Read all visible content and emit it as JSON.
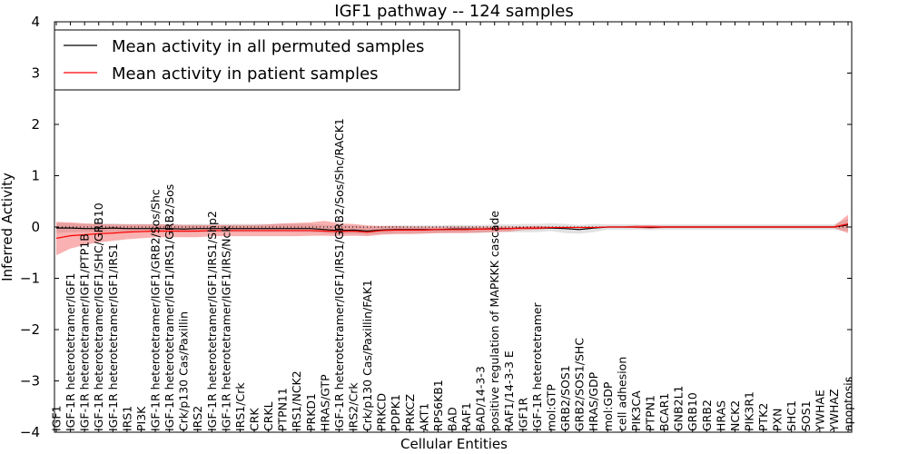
{
  "chart_data": {
    "type": "line",
    "title": "IGF1 pathway -- 124 samples",
    "xlabel": "Cellular Entities",
    "ylabel": "Inferred Activity",
    "ylim": [
      -4,
      4
    ],
    "yticks": [
      4,
      3,
      2,
      1,
      0,
      -1,
      -2,
      -3,
      -4
    ],
    "ytick_labels": [
      "4",
      "3",
      "2",
      "1",
      "0",
      "−1",
      "−2",
      "−3",
      "−4"
    ],
    "reference_line": 0,
    "legend_position": "top-left",
    "categories": [
      "IGF1",
      "IGF-1R heterotetramer/IGF1",
      "IGF-1R heterotetramer/IGF1/PTP1B",
      "IGF-1R heterotetramer/IGF1/SHC/GRB10",
      "IGF-1R heterotetramer/IGF1/IRS1",
      "IRS1",
      "PI3K",
      "IGF-1R heterotetramer/IGF1/GRB2/Sos/Shc",
      "IGF-1R heterotetramer/IGF1/IRS1/GRB2/Sos",
      "Crk/p130 Cas/Paxillin",
      "IRS2",
      "IGF-1R heterotetramer/IGF1/IRS1/Shp2",
      "IGF-1R heterotetramer/IGF1/IRS/Nck",
      "IRS1/Crk",
      "CRK",
      "CRKL",
      "PTPN11",
      "IRS1/NCK2",
      "PRKD1",
      "HRAS/GTP",
      "IGF-1R heterotetramer/IGF1/IRS1/GRB2/Sos/Shc/RACK1",
      "IRS2/Crk",
      "Crk/p130 Cas/Paxillin/FAK1",
      "PRKCD",
      "PDPK1",
      "PRKCZ",
      "AKT1",
      "RPS6KB1",
      "BAD",
      "RAF1",
      "BAD/14-3-3",
      "positive regulation of MAPKKK cascade",
      "RAF1/14-3-3 E",
      "IGF1R",
      "IGF-1R heterotetramer",
      "mol:GTP",
      "GRB2/SOS1",
      "GRB2/SOS1/SHC",
      "HRAS/GDP",
      "mol:GDP",
      "cell adhesion",
      "PIK3CA",
      "PTPN1",
      "BCAR1",
      "GNB2L1",
      "GRB10",
      "GRB2",
      "HRAS",
      "NCK2",
      "PIK3R1",
      "PTK2",
      "PXN",
      "SHC1",
      "SOS1",
      "YWHAE",
      "YWHAZ",
      "apoptosis"
    ],
    "series": [
      {
        "name": "Mean activity in all permuted samples",
        "color": "#000000",
        "values": [
          -0.02,
          -0.02,
          -0.03,
          -0.03,
          -0.02,
          -0.03,
          -0.03,
          -0.03,
          -0.03,
          -0.04,
          -0.03,
          -0.03,
          -0.03,
          -0.03,
          -0.03,
          -0.03,
          -0.03,
          -0.03,
          -0.03,
          -0.05,
          -0.07,
          -0.06,
          -0.08,
          -0.06,
          -0.05,
          -0.05,
          -0.05,
          -0.05,
          -0.04,
          -0.04,
          -0.04,
          -0.03,
          -0.03,
          -0.02,
          -0.02,
          -0.02,
          -0.03,
          -0.05,
          -0.02,
          0.0,
          0.0,
          0.0,
          -0.01,
          0.0,
          0.0,
          0.0,
          0.0,
          0.0,
          0.0,
          0.0,
          0.0,
          0.0,
          0.0,
          0.0,
          0.0,
          0.0,
          0.04
        ],
        "band_lower": [
          -0.12,
          -0.1,
          -0.1,
          -0.1,
          -0.1,
          -0.1,
          -0.1,
          -0.1,
          -0.1,
          -0.11,
          -0.1,
          -0.1,
          -0.1,
          -0.1,
          -0.1,
          -0.1,
          -0.1,
          -0.1,
          -0.1,
          -0.12,
          -0.14,
          -0.13,
          -0.15,
          -0.13,
          -0.12,
          -0.12,
          -0.12,
          -0.12,
          -0.11,
          -0.11,
          -0.11,
          -0.1,
          -0.1,
          -0.1,
          -0.1,
          -0.08,
          -0.12,
          -0.13,
          -0.1,
          -0.05,
          -0.05,
          -0.05,
          -0.06,
          -0.05,
          -0.05,
          -0.05,
          -0.05,
          -0.05,
          -0.05,
          -0.05,
          -0.05,
          -0.05,
          -0.05,
          -0.05,
          -0.05,
          -0.05,
          -0.08
        ],
        "band_upper": [
          0.08,
          0.07,
          0.06,
          0.06,
          0.07,
          0.06,
          0.06,
          0.06,
          0.06,
          0.05,
          0.06,
          0.06,
          0.06,
          0.06,
          0.06,
          0.06,
          0.06,
          0.06,
          0.06,
          0.04,
          0.02,
          0.03,
          0.0,
          0.02,
          0.03,
          0.03,
          0.03,
          0.03,
          0.04,
          0.04,
          0.04,
          0.05,
          0.05,
          0.06,
          0.06,
          0.07,
          0.06,
          0.04,
          0.06,
          0.05,
          0.05,
          0.05,
          0.04,
          0.05,
          0.05,
          0.05,
          0.05,
          0.05,
          0.05,
          0.05,
          0.05,
          0.05,
          0.05,
          0.05,
          0.05,
          0.05,
          0.16
        ]
      },
      {
        "name": "Mean activity in patient samples",
        "color": "#ff0000",
        "values": [
          -0.22,
          -0.17,
          -0.15,
          -0.13,
          -0.12,
          -0.1,
          -0.09,
          -0.08,
          -0.08,
          -0.08,
          -0.08,
          -0.07,
          -0.07,
          -0.07,
          -0.07,
          -0.07,
          -0.07,
          -0.07,
          -0.07,
          -0.08,
          -0.09,
          -0.08,
          -0.1,
          -0.07,
          -0.06,
          -0.06,
          -0.06,
          -0.05,
          -0.05,
          -0.05,
          -0.04,
          -0.04,
          -0.03,
          -0.02,
          -0.02,
          -0.01,
          -0.01,
          -0.01,
          -0.01,
          0.0,
          0.0,
          0.0,
          0.0,
          0.0,
          0.0,
          0.0,
          0.0,
          0.0,
          0.0,
          0.0,
          0.0,
          0.0,
          0.0,
          0.0,
          0.0,
          0.0,
          0.06
        ],
        "band_lower": [
          -0.55,
          -0.42,
          -0.35,
          -0.3,
          -0.27,
          -0.24,
          -0.22,
          -0.2,
          -0.2,
          -0.2,
          -0.2,
          -0.18,
          -0.18,
          -0.18,
          -0.18,
          -0.18,
          -0.18,
          -0.18,
          -0.17,
          -0.17,
          -0.18,
          -0.17,
          -0.18,
          -0.15,
          -0.14,
          -0.14,
          -0.13,
          -0.12,
          -0.12,
          -0.12,
          -0.11,
          -0.1,
          -0.09,
          -0.06,
          -0.05,
          -0.03,
          -0.02,
          -0.02,
          -0.02,
          -0.01,
          -0.01,
          -0.02,
          -0.03,
          -0.02,
          -0.02,
          -0.02,
          -0.02,
          -0.02,
          -0.02,
          -0.02,
          -0.02,
          -0.02,
          -0.02,
          -0.02,
          -0.02,
          -0.02,
          -0.12
        ],
        "band_upper": [
          0.1,
          0.09,
          0.07,
          0.06,
          0.05,
          0.05,
          0.05,
          0.05,
          0.05,
          0.04,
          0.04,
          0.04,
          0.04,
          0.04,
          0.04,
          0.05,
          0.07,
          0.08,
          0.09,
          0.12,
          0.07,
          0.06,
          0.03,
          0.02,
          0.02,
          0.01,
          0.01,
          0.01,
          0.01,
          0.01,
          0.01,
          0.01,
          0.01,
          0.01,
          0.02,
          0.01,
          0.01,
          0.01,
          0.01,
          0.01,
          0.01,
          0.03,
          0.04,
          0.02,
          0.02,
          0.02,
          0.02,
          0.02,
          0.02,
          0.02,
          0.02,
          0.02,
          0.02,
          0.02,
          0.02,
          0.02,
          0.24
        ]
      }
    ]
  }
}
